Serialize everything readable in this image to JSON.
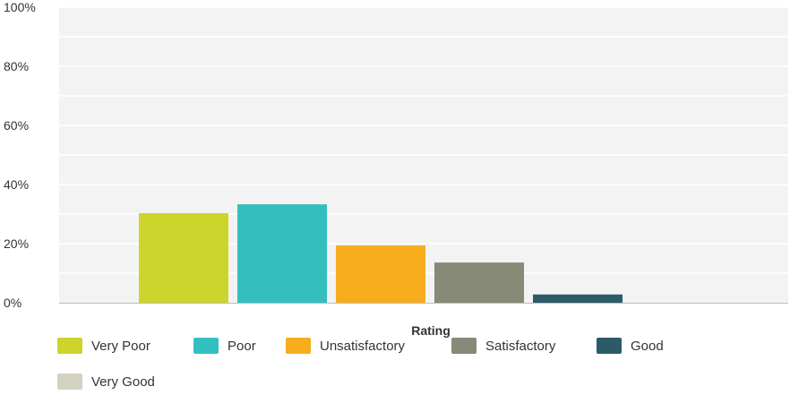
{
  "chart_data": {
    "type": "bar",
    "title": "",
    "xlabel": "Rating",
    "ylabel": "",
    "ylim": [
      0,
      100
    ],
    "y_ticks": [
      "0%",
      "20%",
      "40%",
      "60%",
      "80%",
      "100%"
    ],
    "y_tick_values": [
      0,
      20,
      40,
      60,
      80,
      100
    ],
    "grid": true,
    "legend_position": "bottom",
    "categories": [
      "Very Poor",
      "Poor",
      "Unsatisfactory",
      "Satisfactory",
      "Good",
      "Very Good"
    ],
    "values": [
      30.3,
      33.3,
      19.4,
      13.6,
      2.8,
      0
    ],
    "colors": [
      "#cdd42b",
      "#34bfbf",
      "#f6ad1e",
      "#868a76",
      "#2b5b67",
      "#d3d1c0"
    ]
  }
}
